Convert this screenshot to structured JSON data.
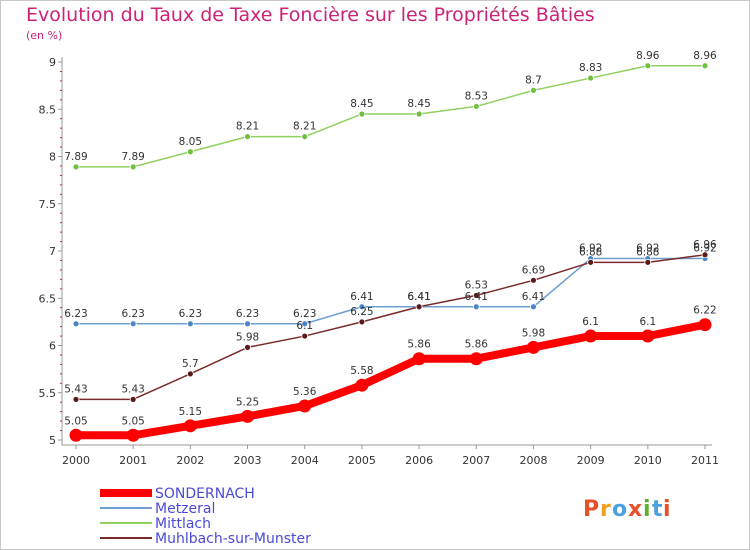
{
  "chart_data": {
    "type": "line",
    "title": "Evolution du Taux de Taxe Foncière sur les Propriétés Bâties",
    "subtitle": "(en %)",
    "x": [
      "2000",
      "2001",
      "2002",
      "2003",
      "2004",
      "2005",
      "2006",
      "2007",
      "2008",
      "2009",
      "2010",
      "2011"
    ],
    "ylim": [
      5,
      9
    ],
    "yticks": [
      "5",
      "5.5",
      "6",
      "6.5",
      "7",
      "7.5",
      "8",
      "8.5",
      "9"
    ],
    "grid": false,
    "legend_position": "bottom-left",
    "series": [
      {
        "name": "SONDERNACH",
        "color": "#ff0000",
        "values": [
          5.05,
          5.05,
          5.15,
          5.25,
          5.36,
          5.58,
          5.86,
          5.86,
          5.98,
          6.1,
          6.1,
          6.22
        ],
        "labels": [
          "5.05",
          "5.05",
          "5.15",
          "5.25",
          "5.36",
          "5.58",
          "5.86",
          "5.86",
          "5.98",
          "6.1",
          "6.1",
          "6.22"
        ]
      },
      {
        "name": "Metzeral",
        "color": "#6f9fcf",
        "values": [
          6.23,
          6.23,
          6.23,
          6.23,
          6.23,
          6.41,
          6.41,
          6.41,
          6.41,
          6.92,
          6.92,
          6.92
        ],
        "labels": [
          "6.23",
          "6.23",
          "6.23",
          "6.23",
          "6.23",
          "6.41",
          "6.41",
          "6.41",
          "6.41",
          "6.92",
          "6.92",
          "6.92"
        ]
      },
      {
        "name": "Mittlach",
        "color": "#90d060",
        "values": [
          7.89,
          7.89,
          8.05,
          8.21,
          8.21,
          8.45,
          8.45,
          8.53,
          8.7,
          8.83,
          8.96,
          8.96
        ],
        "labels": [
          "7.89",
          "7.89",
          "8.05",
          "8.21",
          "8.21",
          "8.45",
          "8.45",
          "8.53",
          "8.7",
          "8.83",
          "8.96",
          "8.96"
        ]
      },
      {
        "name": "Muhlbach-sur-Munster",
        "color": "#7a2a2a",
        "values": [
          5.43,
          5.43,
          5.7,
          5.98,
          6.1,
          6.25,
          6.41,
          6.53,
          6.69,
          6.88,
          6.88,
          6.96
        ],
        "labels": [
          "5.43",
          "5.43",
          "5.7",
          "5.98",
          "6.1",
          "6.25",
          "6.41",
          "6.53",
          "6.69",
          "6.88",
          "6.88",
          "6.96"
        ]
      }
    ]
  },
  "logo": {
    "letters": [
      "P",
      "r",
      "o",
      "x",
      "i",
      "t",
      "i"
    ],
    "colors": [
      "#e8502a",
      "#f0a020",
      "#4aa0e0",
      "#e8502a",
      "#60b030",
      "#4aa0e0",
      "#e8502a"
    ]
  }
}
